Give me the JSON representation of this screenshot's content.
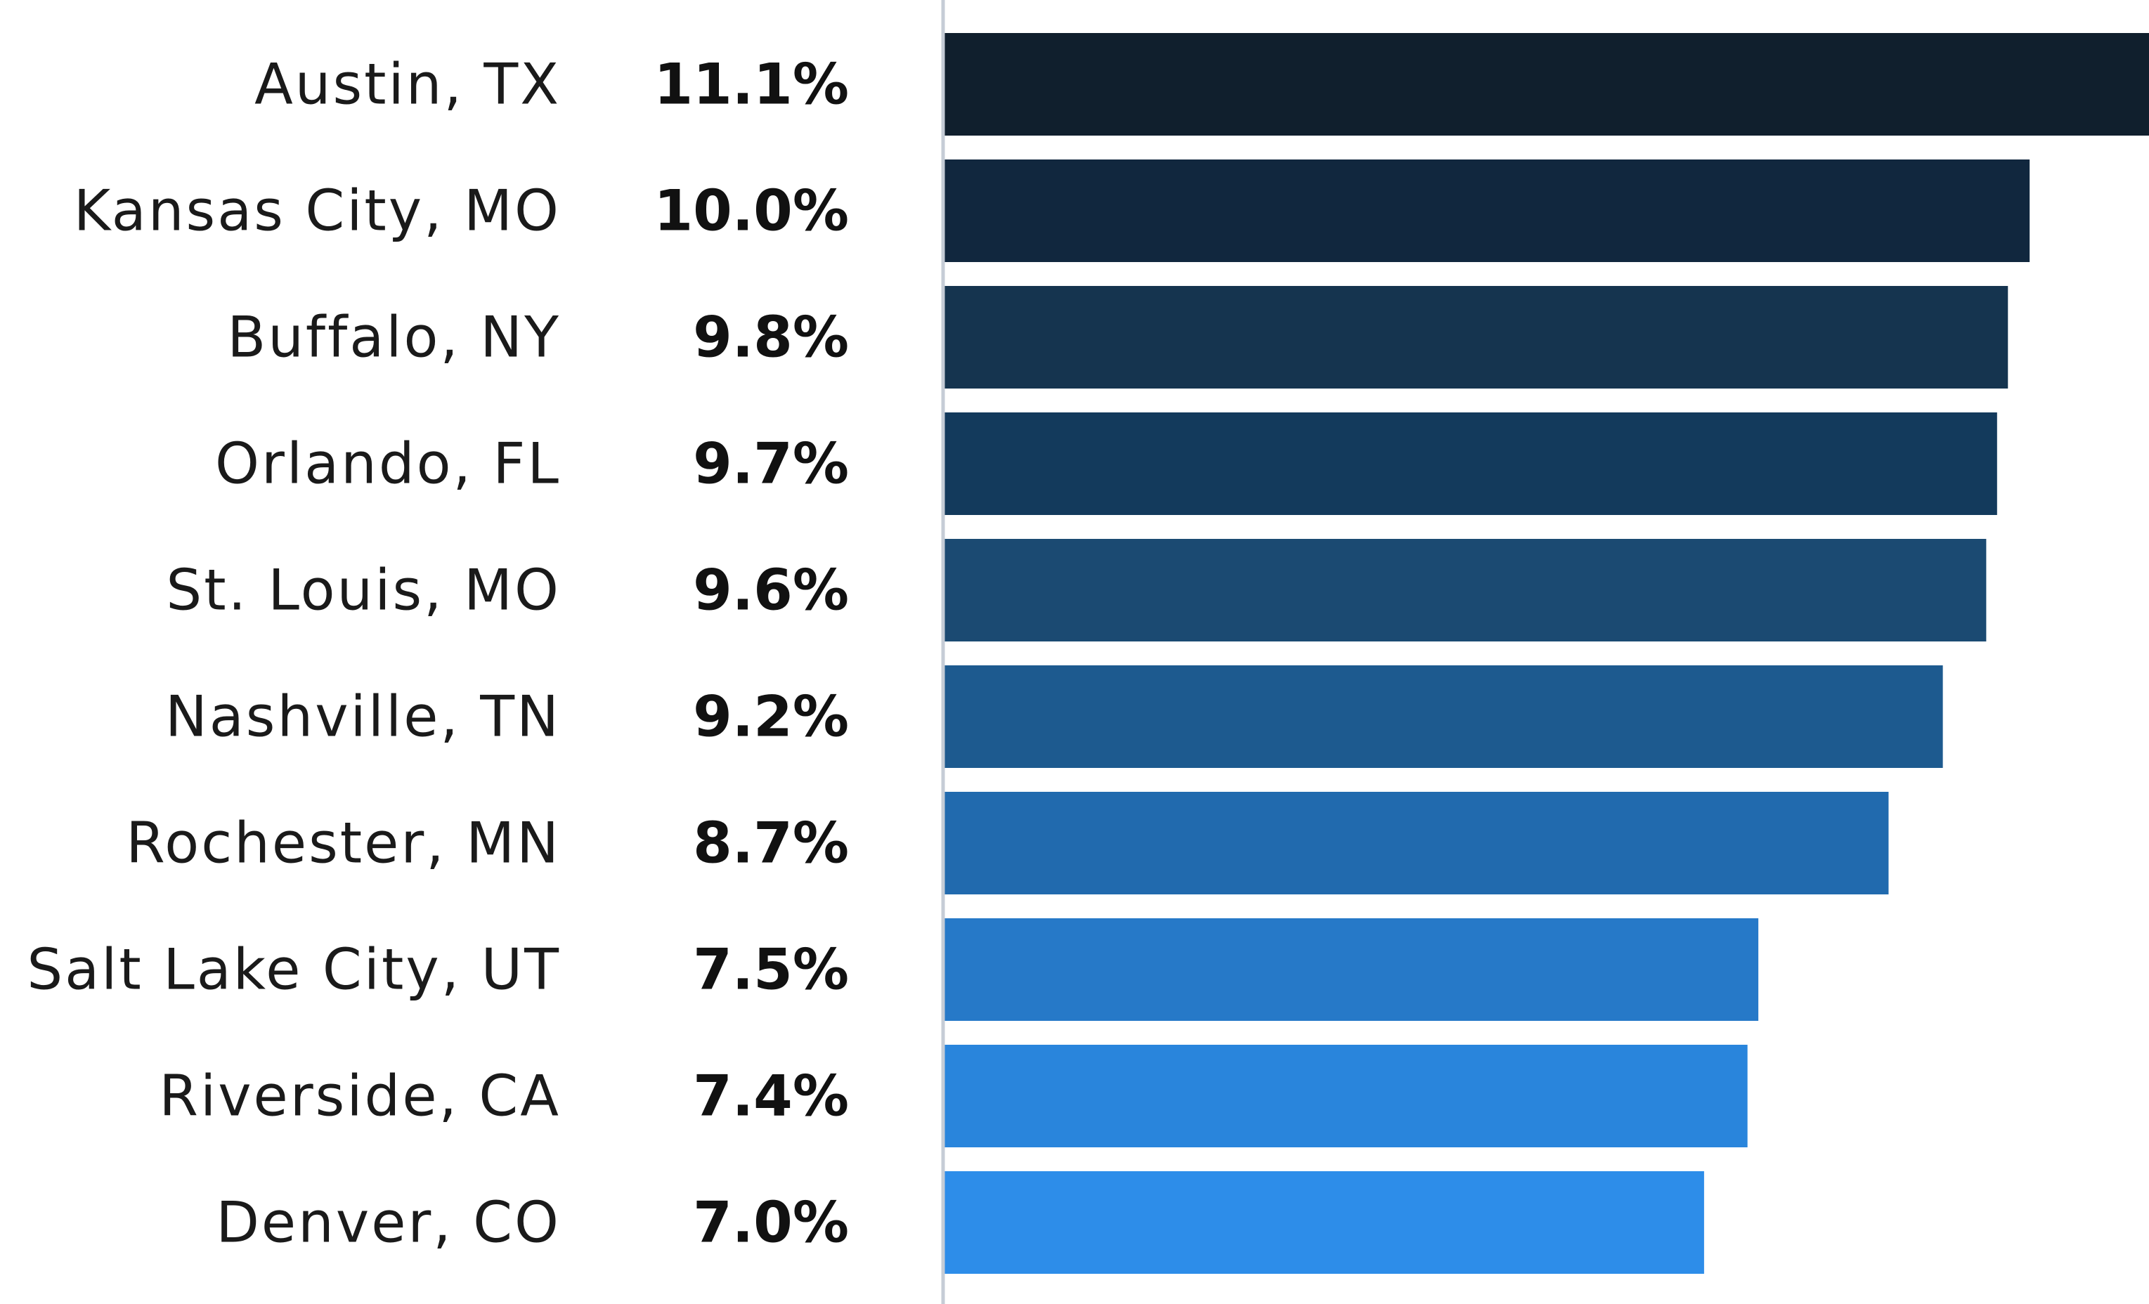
{
  "chart_data": {
    "type": "bar",
    "orientation": "horizontal",
    "title": "",
    "xlabel": "",
    "ylabel": "",
    "grid": false,
    "categories": [
      "Austin, TX",
      "Kansas City, MO",
      "Buffalo, NY",
      "Orlando, FL",
      "St. Louis, MO",
      "Nashville, TN",
      "Rochester, MN",
      "Salt Lake City, UT",
      "Riverside, CA",
      "Denver, CO"
    ],
    "values": [
      11.1,
      10.0,
      9.8,
      9.7,
      9.6,
      9.2,
      8.7,
      7.5,
      7.4,
      7.0
    ],
    "value_labels": [
      "11.1%",
      "10.0%",
      "9.8%",
      "9.7%",
      "9.6%",
      "9.2%",
      "8.7%",
      "7.5%",
      "7.4%",
      "7.0%"
    ],
    "xlim": [
      0,
      11.1
    ],
    "colors": [
      "#101f2d",
      "#11273e",
      "#15344f",
      "#133a5c",
      "#1b4a72",
      "#1d5a8f",
      "#216aae",
      "#2679c8",
      "#2985dc",
      "#2d8de9"
    ],
    "axis_color": "#c5ccd6"
  }
}
